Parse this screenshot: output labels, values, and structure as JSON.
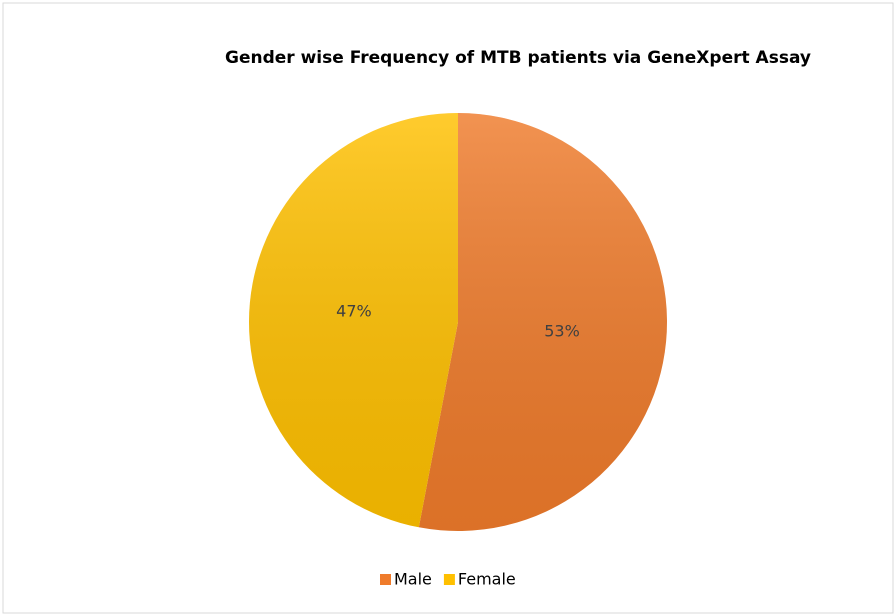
{
  "chart_data": {
    "type": "pie",
    "title": "Gender wise Frequency of MTB patients via GeneXpert Assay",
    "categories": [
      "Male",
      "Female"
    ],
    "values": [
      53,
      47
    ],
    "value_labels": [
      "53%",
      "47%"
    ],
    "colors": [
      "#ef7b2b",
      "#ffc000"
    ],
    "legend": "bottom"
  }
}
